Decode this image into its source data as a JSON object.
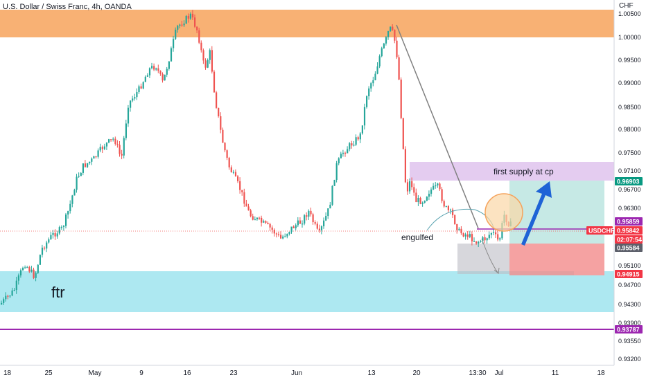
{
  "header": {
    "title": "U.S. Dollar / Swiss Franc, 4h, OANDA",
    "currency": "CHF"
  },
  "chart_data": {
    "type": "candlestick",
    "symbol": "USDCHF",
    "y_ticks": [
      "1.00500",
      "1.00000",
      "0.99500",
      "0.99000",
      "0.98500",
      "0.98000",
      "0.97500",
      "0.97100",
      "0.96700",
      "0.96300",
      "0.95100",
      "0.94700",
      "0.94300",
      "0.93900",
      "0.93550",
      "0.93200"
    ],
    "x_ticks": [
      "18",
      "25",
      "May",
      "9",
      "16",
      "23",
      "Jun",
      "13",
      "20",
      "13:30",
      "Jul",
      "11",
      "18"
    ],
    "price_labels": [
      {
        "id": "supply-top",
        "text": "0.96903",
        "color": "#089981"
      },
      {
        "id": "line-purple",
        "text": "0.95859",
        "color": "#9c27b0"
      },
      {
        "id": "symbol",
        "text": "USDCHF",
        "color": "#f23645"
      },
      {
        "id": "last-price",
        "text": "0.95842",
        "color": "#f23645"
      },
      {
        "id": "countdown",
        "text": "02:07:54",
        "color": "#f23645"
      },
      {
        "id": "box-grey",
        "text": "0.95584",
        "color": "#5d606b"
      },
      {
        "id": "stop",
        "text": "0.94915",
        "color": "#f23645"
      },
      {
        "id": "bottom-line",
        "text": "0.93787",
        "color": "#9c27b0"
      }
    ],
    "annotations": {
      "ftr": "ftr",
      "supply": "first supply at cp",
      "engulfed": "engulfed"
    },
    "colors": {
      "up": "#26a69a",
      "down": "#ef5350",
      "supply_zone": "#f7a35c",
      "demand_zone": "#9fe4ef",
      "supply_box": "#e1c6ee",
      "target_box": "#b8e4df",
      "stop_box": "#f28b8b"
    }
  }
}
